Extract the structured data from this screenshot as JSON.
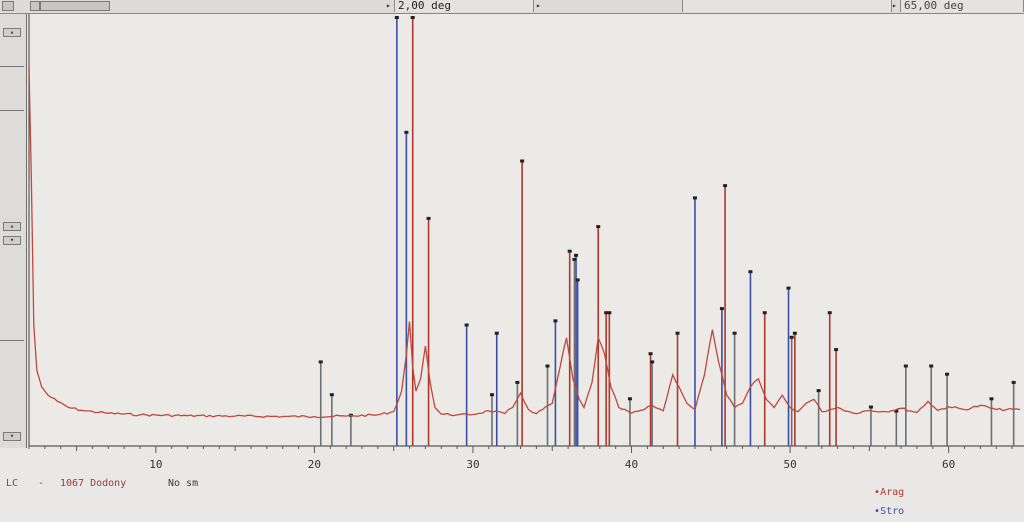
{
  "toolbar": {
    "start_angle": "2,00 deg",
    "end_angle_partial": "65,00 deg"
  },
  "footer": {
    "sample_prefix": "LC",
    "sample_sep": "-",
    "sample_name": "1067 Dodony",
    "no_sm": "No sm"
  },
  "legend": [
    {
      "name": "Arag",
      "color": "#b0362c"
    },
    {
      "name": "Stro",
      "color": "#3a4ea8"
    }
  ],
  "chart_data": {
    "type": "line",
    "title": "",
    "xlabel": "",
    "ylabel": "",
    "xlim": [
      2,
      64.5
    ],
    "ylim": [
      0,
      100
    ],
    "xticks": [
      10,
      20,
      30,
      40,
      50,
      60
    ],
    "grid": false,
    "legend_position": "bottom-right",
    "series": [
      {
        "name": "1067 Dodony",
        "color": "#c0473b",
        "x": [
          2.0,
          2.15,
          2.3,
          2.5,
          2.8,
          3.2,
          3.8,
          4.5,
          5.5,
          7,
          9,
          12,
          15,
          18,
          20,
          22,
          24,
          25,
          25.5,
          25.8,
          26.0,
          26.2,
          26.4,
          26.7,
          27.0,
          27.3,
          27.6,
          28.0,
          29,
          30,
          31,
          32,
          32.5,
          33,
          33.5,
          34,
          35,
          35.5,
          35.9,
          36.3,
          36.7,
          37,
          37.5,
          37.9,
          38.3,
          38.7,
          39.2,
          40,
          40.8,
          41.3,
          42,
          42.6,
          43.0,
          43.5,
          44,
          44.6,
          45.1,
          45.5,
          46.0,
          46.5,
          47,
          47.5,
          48.0,
          48.5,
          49,
          49.5,
          50,
          50.5,
          51,
          51.5,
          52,
          52.5,
          53,
          54,
          55,
          56,
          57,
          58,
          58.7,
          59.3,
          60,
          61,
          62,
          63,
          64.5
        ],
        "y": [
          88,
          60,
          25,
          14,
          10,
          8,
          6.5,
          5,
          4.2,
          3.6,
          3.2,
          3.0,
          2.9,
          2.8,
          2.8,
          2.9,
          3.2,
          4.0,
          9,
          18,
          26,
          15,
          9,
          12,
          20,
          11,
          5,
          3.4,
          3.2,
          3.3,
          4.2,
          3.5,
          5.0,
          8.5,
          4.5,
          3.5,
          6,
          15,
          22,
          12,
          7,
          5,
          11,
          22,
          18,
          10,
          5,
          3.6,
          4.5,
          5.5,
          4.2,
          13,
          10,
          6,
          4.5,
          13,
          24,
          16,
          8,
          5,
          6,
          10,
          12,
          7,
          5,
          8,
          5,
          4,
          6,
          7,
          4,
          4.5,
          5,
          3.6,
          4.3,
          4,
          4.8,
          3.8,
          6.5,
          4.3,
          5.2,
          4.5,
          5.5,
          4.5,
          4.5
        ]
      }
    ],
    "reference_patterns": [
      {
        "name": "Arag",
        "color": "#b0362c",
        "x": [
          26.2,
          27.2,
          33.1,
          36.1,
          37.9,
          38.4,
          38.6,
          41.2,
          42.9,
          45.9,
          48.4,
          50.3,
          52.5,
          52.9
        ],
        "y": [
          100,
          51,
          65,
          43,
          49,
          28,
          28,
          18,
          23,
          59,
          28,
          23,
          28,
          19
        ]
      },
      {
        "name": "Stro",
        "color": "#3a4ea8",
        "x": [
          25.2,
          25.8,
          29.6,
          31.5,
          35.2,
          36.5,
          36.6,
          44.0,
          45.7,
          47.5,
          49.9
        ],
        "y": [
          100,
          72,
          25,
          23,
          26,
          42,
          36,
          56,
          29,
          38,
          34
        ]
      },
      {
        "name": "",
        "color": "#6b7078",
        "x": [
          20.4,
          21.1,
          22.3,
          31.2,
          32.8,
          34.7,
          36.4,
          39.9,
          41.3,
          46.5,
          50.1,
          51.8,
          55.1,
          56.7,
          57.3,
          58.9,
          59.9,
          62.7,
          64.1
        ],
        "y": [
          16,
          8,
          3,
          8,
          11,
          15,
          41,
          7,
          16,
          23,
          22,
          9,
          5,
          4,
          15,
          15,
          13,
          7,
          11
        ]
      }
    ]
  }
}
